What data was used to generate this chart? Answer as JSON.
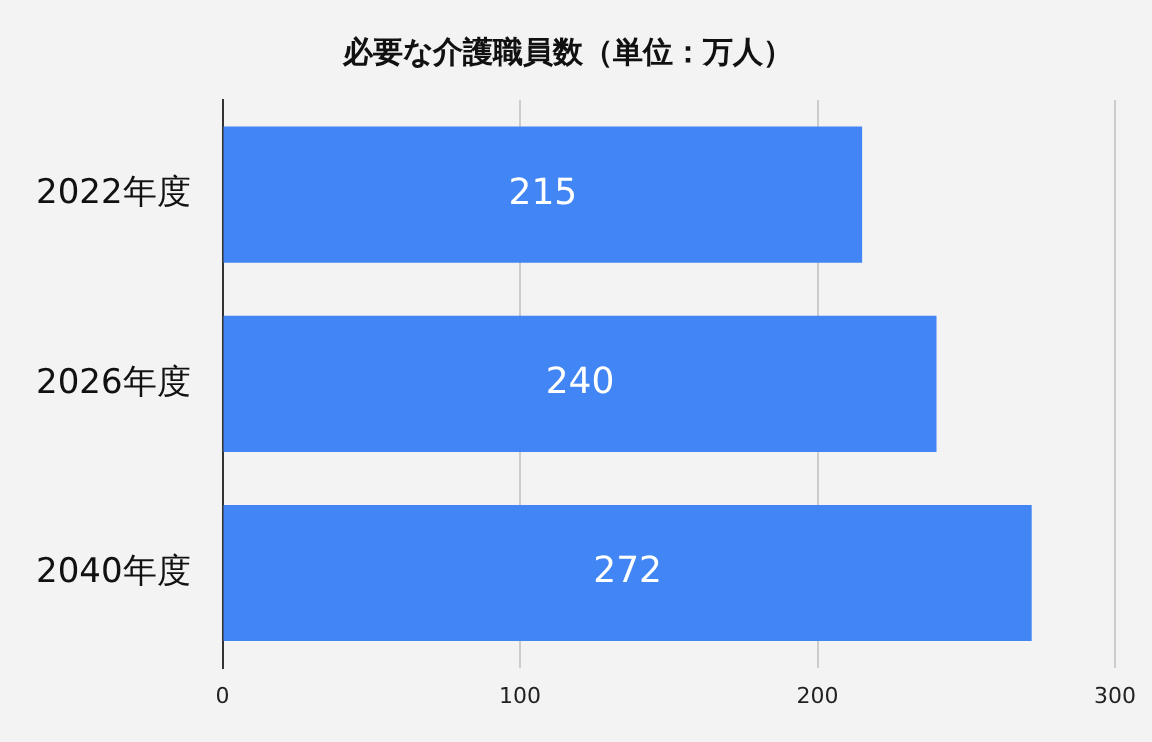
{
  "chart_data": {
    "type": "bar",
    "orientation": "horizontal",
    "title": "必要な介護職員数（単位：万人）",
    "categories": [
      "2022年度",
      "2026年度",
      "2040年度"
    ],
    "values": [
      215,
      240,
      272
    ],
    "color": "#4285f4",
    "xlim": [
      0,
      300
    ],
    "xticks": [
      0,
      100,
      200,
      300
    ],
    "grid": "x",
    "data_labels": true
  }
}
